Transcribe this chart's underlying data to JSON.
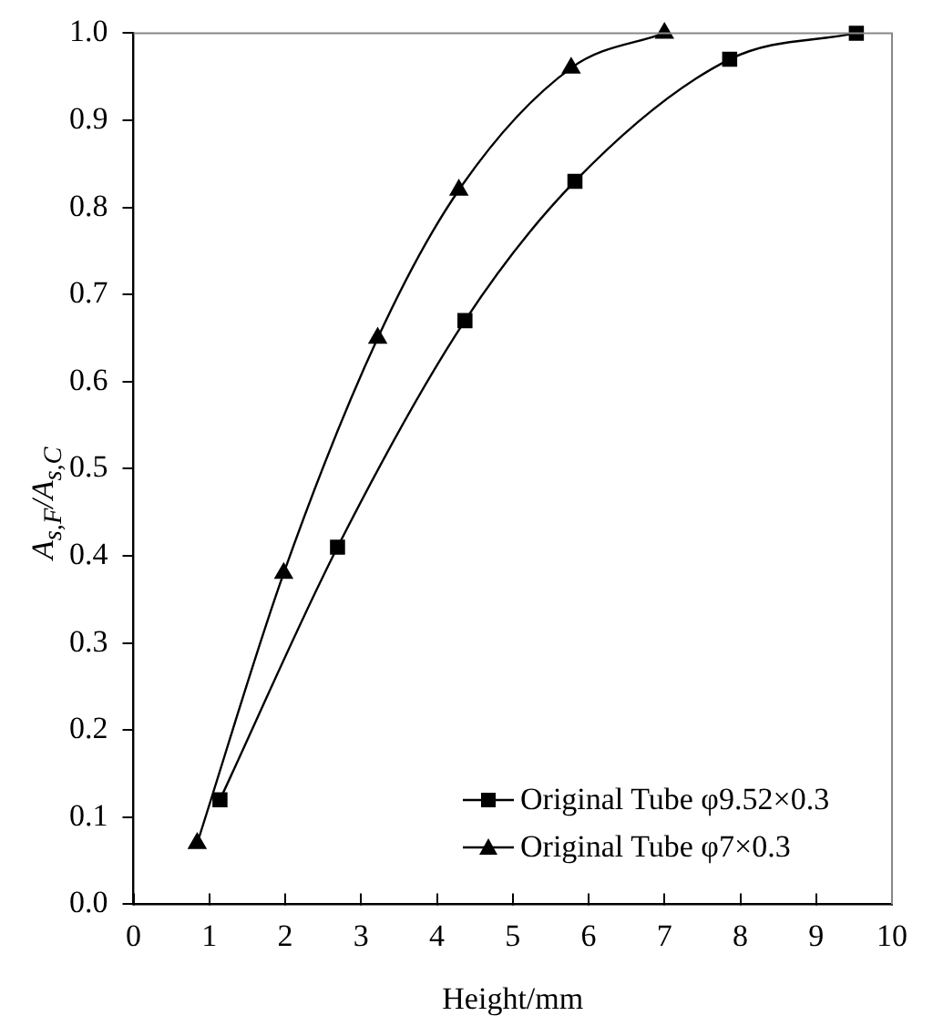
{
  "chart_data": {
    "type": "line",
    "xlabel": "Height/mm",
    "ylabel": "A$_{s,F}$/A$_{s,C}$",
    "xlim": [
      0,
      10
    ],
    "xticks": [
      0,
      1,
      2,
      3,
      4,
      5,
      6,
      7,
      8,
      9,
      10
    ],
    "ylim": [
      0,
      1
    ],
    "yticks": [
      {
        "value": 0,
        "label": "0.0"
      },
      0.1,
      0.2,
      0.3,
      0.4,
      0.5,
      0.6,
      0.7,
      0.8,
      0.9,
      {
        "value": 1,
        "label": "1.0"
      }
    ],
    "grid": false,
    "legend": "bottom right",
    "series": [
      {
        "name": "Original Tube φ9.52×0.3",
        "color": "#000000",
        "marker": "square",
        "x": [
          1.14,
          2.69,
          4.37,
          5.82,
          7.86,
          9.53
        ],
        "values": [
          0.12,
          0.41,
          0.67,
          0.83,
          0.97,
          1.0
        ]
      },
      {
        "name": "Original Tube φ7×0.3",
        "color": "#000000",
        "marker": "triangle",
        "x": [
          0.84,
          1.98,
          3.22,
          4.29,
          5.77,
          7.0
        ],
        "values": [
          0.07,
          0.38,
          0.65,
          0.82,
          0.96,
          1.0
        ]
      }
    ]
  }
}
